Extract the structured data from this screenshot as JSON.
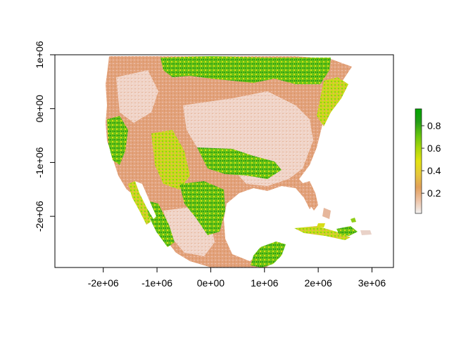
{
  "chart_data": {
    "type": "heatmap",
    "title": "",
    "xlabel": "",
    "ylabel": "",
    "xlim": [
      -2900000,
      3400000
    ],
    "ylim": [
      -2950000,
      1000000
    ],
    "x_ticks": [
      {
        "value": -2000000,
        "label": "-2e+06"
      },
      {
        "value": -1000000,
        "label": "-1e+06"
      },
      {
        "value": 0,
        "label": "0e+00"
      },
      {
        "value": 1000000,
        "label": "1e+06"
      },
      {
        "value": 2000000,
        "label": "2e+06"
      },
      {
        "value": 3000000,
        "label": "3e+06"
      }
    ],
    "y_ticks": [
      {
        "value": 1000000,
        "label": "1e+06"
      },
      {
        "value": 0,
        "label": "0e+00"
      },
      {
        "value": -1000000,
        "label": "-1e+06"
      },
      {
        "value": -2000000,
        "label": "-2e+06"
      }
    ],
    "legend": {
      "placement": "right",
      "min": 0.02,
      "max": 0.95,
      "ticks": [
        {
          "value": 0.2,
          "label": "0.2"
        },
        {
          "value": 0.4,
          "label": "0.4"
        },
        {
          "value": 0.6,
          "label": "0.6"
        },
        {
          "value": 0.8,
          "label": "0.8"
        }
      ],
      "colors": [
        "#f2f2f2",
        "#edc3a6",
        "#e2a05c",
        "#e6c83c",
        "#e3e312",
        "#a9d70b",
        "#63c30f",
        "#249c17",
        "#00a600"
      ]
    },
    "map_colors": {
      "low": "#efd2c8",
      "mid": "#e2a67c",
      "yellow": "#e3e11a",
      "lightgreen": "#8fcf1a",
      "green": "#2fa51d"
    }
  }
}
